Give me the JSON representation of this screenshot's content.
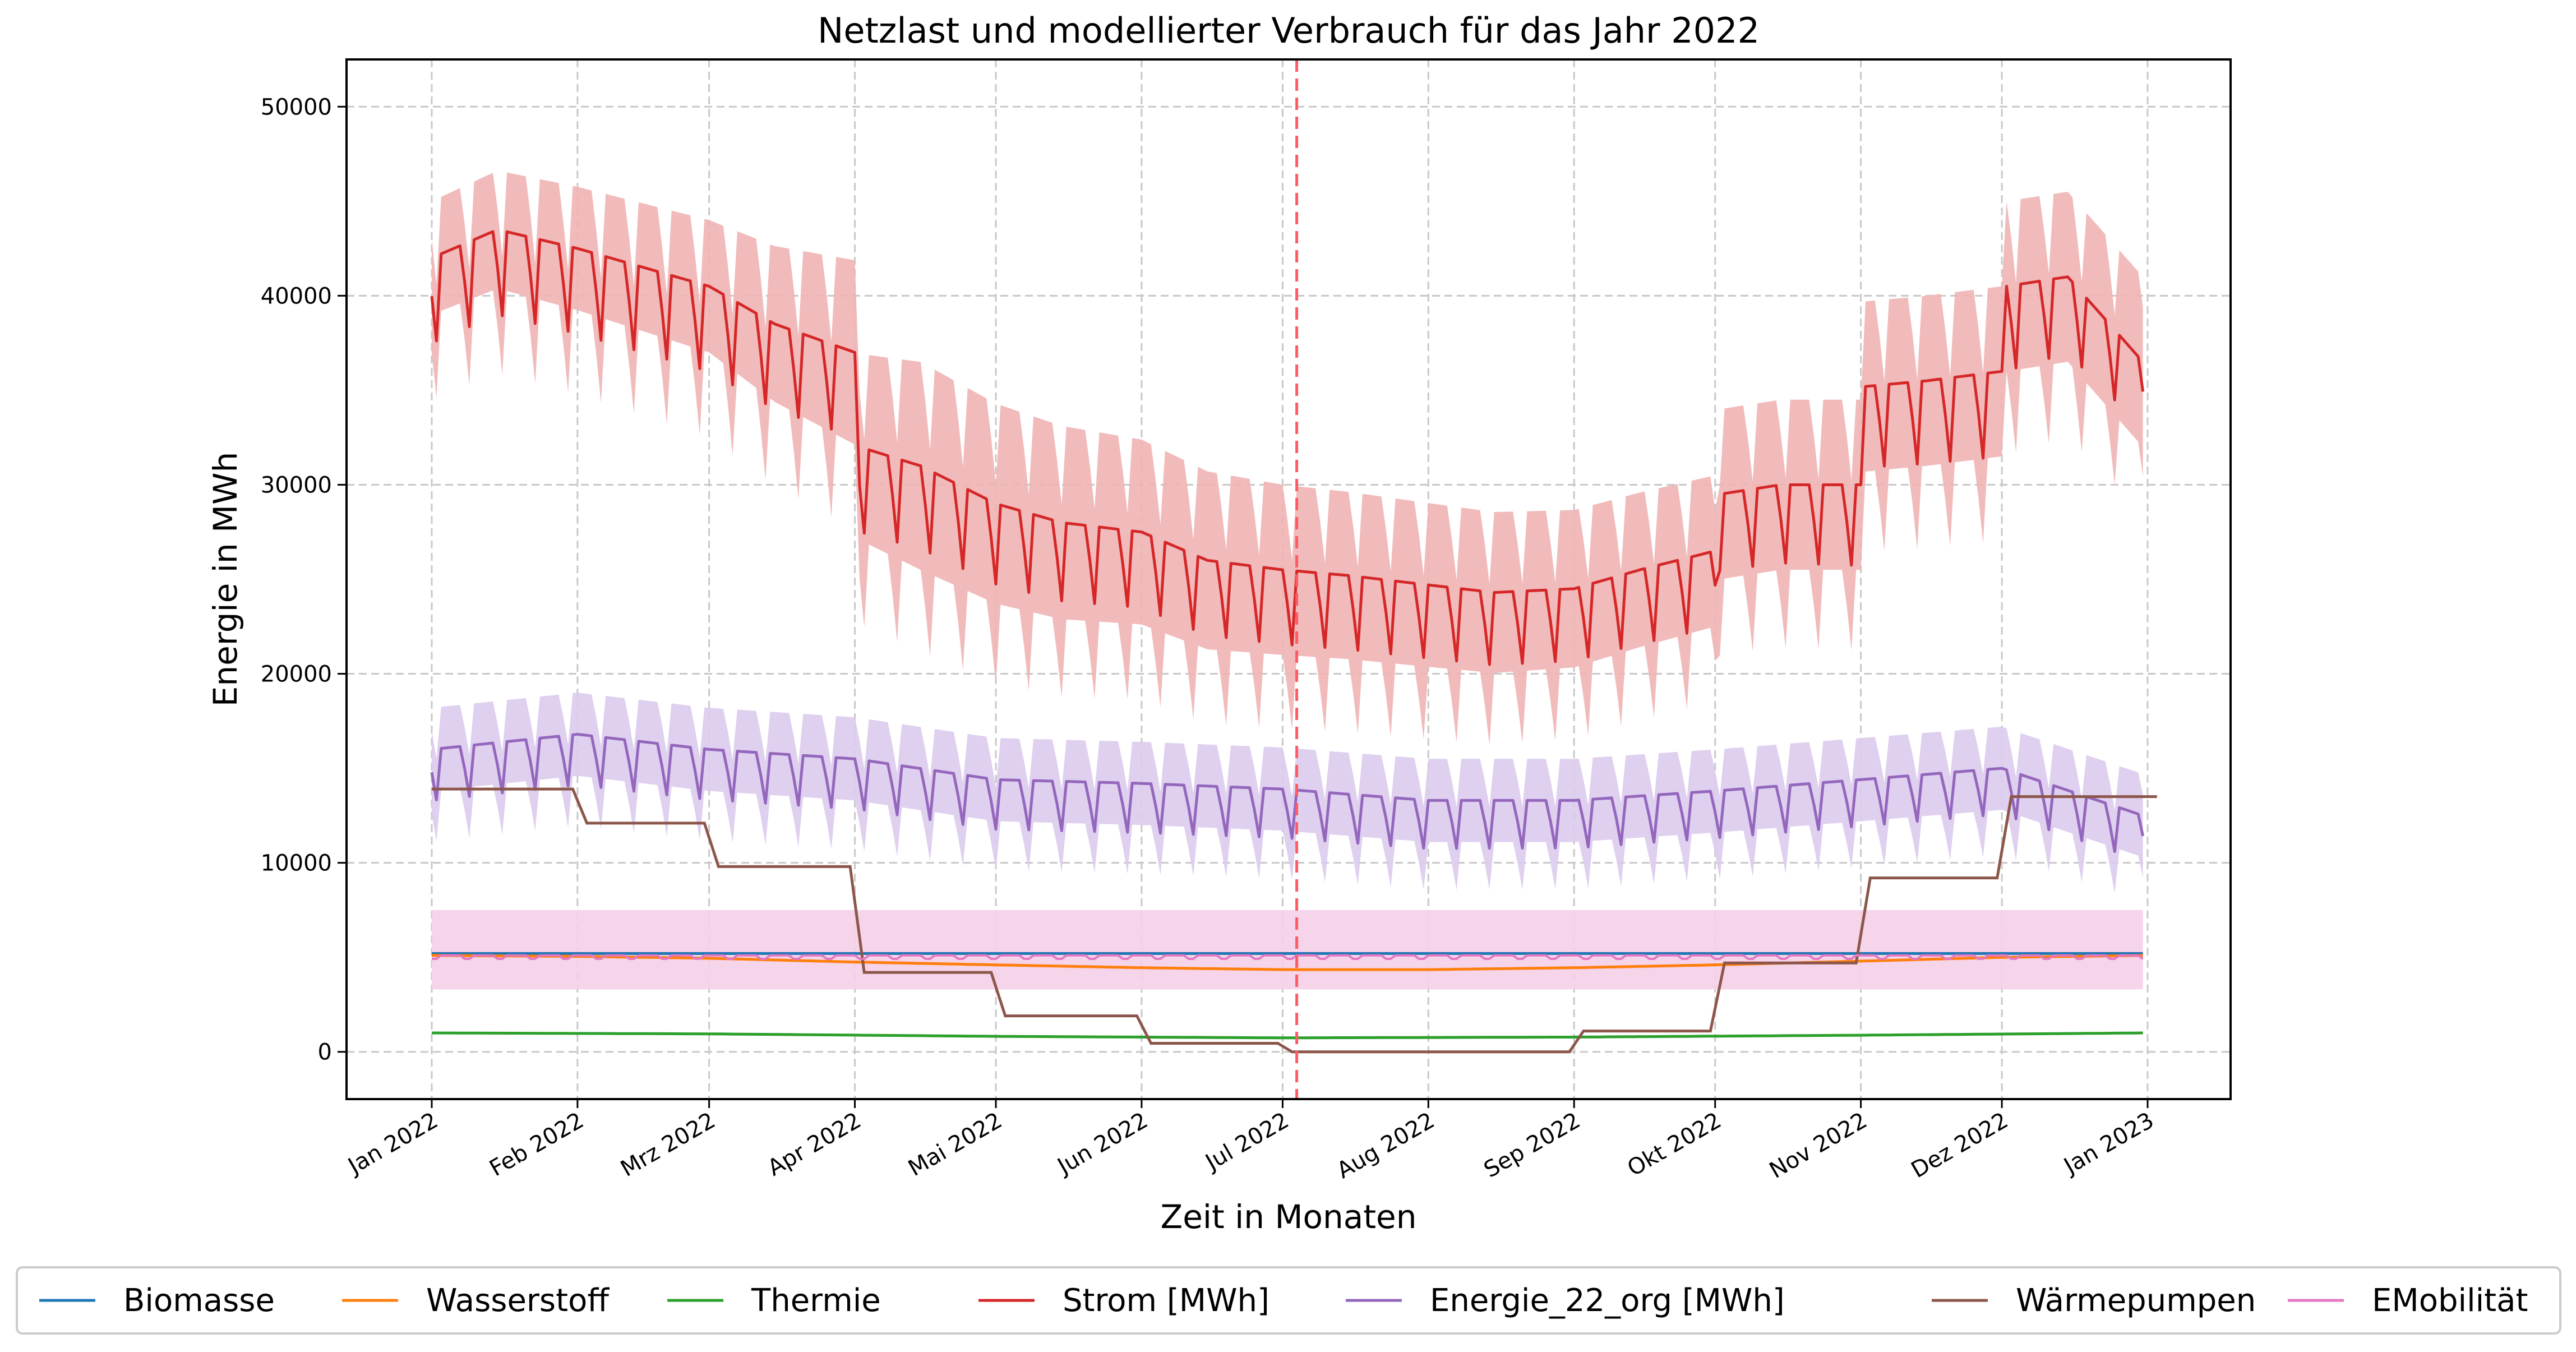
{
  "chart_data": {
    "type": "line",
    "title": "Netzlast und modellierter Verbrauch für das Jahr 2022",
    "xlabel": "Zeit in Monaten",
    "ylabel": "Energie in MWh",
    "x_range": [
      "2022-01-01",
      "2023-01-01"
    ],
    "ylim": [
      -2500,
      52500
    ],
    "grid": true,
    "legend_position": "bottom",
    "x_ticks": [
      "Jan 2022",
      "Feb 2022",
      "Mrz 2022",
      "Apr 2022",
      "Mai 2022",
      "Jun 2022",
      "Jul 2022",
      "Aug 2022",
      "Sep 2022",
      "Okt 2022",
      "Nov 2022",
      "Dez 2022",
      "Jan 2023"
    ],
    "y_ticks": [
      0,
      10000,
      20000,
      30000,
      40000,
      50000
    ],
    "vertical_marker": {
      "date": "2022-07-04",
      "color": "#ff5a64",
      "style": "dashed"
    },
    "series": [
      {
        "name": "Biomasse",
        "color": "#1f77b4",
        "type": "smooth",
        "points": [
          [
            "2022-01-01",
            5200
          ],
          [
            "2022-12-31",
            5200
          ]
        ]
      },
      {
        "name": "Wasserstoff",
        "color": "#ff7f0e",
        "type": "smooth",
        "points": [
          [
            "2022-01-01",
            5100
          ],
          [
            "2022-02-01",
            5050
          ],
          [
            "2022-03-01",
            4950
          ],
          [
            "2022-04-01",
            4750
          ],
          [
            "2022-05-01",
            4600
          ],
          [
            "2022-06-01",
            4450
          ],
          [
            "2022-07-01",
            4350
          ],
          [
            "2022-08-01",
            4350
          ],
          [
            "2022-09-01",
            4450
          ],
          [
            "2022-10-01",
            4600
          ],
          [
            "2022-11-01",
            4800
          ],
          [
            "2022-12-01",
            5000
          ],
          [
            "2022-12-31",
            5100
          ]
        ]
      },
      {
        "name": "Thermie",
        "color": "#2ca02c",
        "type": "smooth",
        "points": [
          [
            "2022-01-01",
            1000
          ],
          [
            "2022-03-01",
            950
          ],
          [
            "2022-05-01",
            820
          ],
          [
            "2022-07-01",
            740
          ],
          [
            "2022-09-01",
            780
          ],
          [
            "2022-11-01",
            880
          ],
          [
            "2022-12-31",
            1000
          ]
        ]
      },
      {
        "name": "Strom [MWh]",
        "color": "#d62728",
        "type": "weekly",
        "band_color": "#f0b4b4",
        "weekday_base": [
          [
            "2022-01-01",
            42000
          ],
          [
            "2022-01-15",
            43500
          ],
          [
            "2022-02-01",
            42500
          ],
          [
            "2022-02-15",
            41500
          ],
          [
            "2022-03-01",
            40500
          ],
          [
            "2022-03-15",
            38500
          ],
          [
            "2022-04-01",
            37000
          ],
          [
            "2022-04-02",
            32000
          ],
          [
            "2022-04-15",
            31000
          ],
          [
            "2022-05-01",
            29000
          ],
          [
            "2022-05-15",
            28000
          ],
          [
            "2022-06-01",
            27500
          ],
          [
            "2022-06-15",
            26000
          ],
          [
            "2022-07-01",
            25500
          ],
          [
            "2022-07-15",
            25200
          ],
          [
            "2022-08-01",
            24700
          ],
          [
            "2022-08-15",
            24300
          ],
          [
            "2022-09-01",
            24500
          ],
          [
            "2022-09-15",
            25500
          ],
          [
            "2022-10-01",
            26500
          ],
          [
            "2022-10-02",
            29500
          ],
          [
            "2022-10-15",
            30000
          ],
          [
            "2022-11-01",
            30000
          ],
          [
            "2022-11-02",
            35200
          ],
          [
            "2022-11-15",
            35500
          ],
          [
            "2022-12-01",
            36000
          ],
          [
            "2022-12-02",
            40500
          ],
          [
            "2022-12-15",
            41000
          ],
          [
            "2022-12-31",
            36500
          ]
        ],
        "weekend_dip": [
          [
            "2022-01-01",
            4500
          ],
          [
            "2022-04-01",
            4500
          ],
          [
            "2022-06-01",
            4000
          ],
          [
            "2022-09-01",
            3800
          ],
          [
            "2022-12-01",
            4500
          ],
          [
            "2022-12-31",
            3500
          ]
        ],
        "band_halfwidth": [
          [
            "2022-01-01",
            3000
          ],
          [
            "2022-03-01",
            3500
          ],
          [
            "2022-04-15",
            5500
          ],
          [
            "2022-07-01",
            4500
          ],
          [
            "2022-10-01",
            4000
          ],
          [
            "2022-10-02",
            4500
          ],
          [
            "2022-12-31",
            4500
          ]
        ]
      },
      {
        "name": "Energie_22_org [MWh]",
        "color": "#9467bd",
        "type": "weekly",
        "band_color": "#dccbed",
        "weekday_base": [
          [
            "2022-01-01",
            16000
          ],
          [
            "2022-02-01",
            16800
          ],
          [
            "2022-03-01",
            16000
          ],
          [
            "2022-04-01",
            15500
          ],
          [
            "2022-05-01",
            14400
          ],
          [
            "2022-06-01",
            14200
          ],
          [
            "2022-07-01",
            13900
          ],
          [
            "2022-08-01",
            13300
          ],
          [
            "2022-09-01",
            13300
          ],
          [
            "2022-10-01",
            13800
          ],
          [
            "2022-11-01",
            14400
          ],
          [
            "2022-12-01",
            15000
          ],
          [
            "2022-12-31",
            12500
          ]
        ],
        "weekend_dip": [
          [
            "2022-01-01",
            2700
          ],
          [
            "2022-06-01",
            2600
          ],
          [
            "2022-12-31",
            2400
          ]
        ],
        "band_halfwidth": [
          [
            "2022-01-01",
            2200
          ],
          [
            "2022-12-31",
            2200
          ]
        ]
      },
      {
        "name": "Wärmepumpen",
        "color": "#8c564b",
        "type": "step",
        "points": [
          [
            "2022-01-01",
            13900
          ],
          [
            "2022-01-31",
            12100
          ],
          [
            "2022-02-28",
            9800
          ],
          [
            "2022-03-31",
            4200
          ],
          [
            "2022-04-30",
            1900
          ],
          [
            "2022-05-31",
            450
          ],
          [
            "2022-06-30",
            0
          ],
          [
            "2022-08-31",
            1100
          ],
          [
            "2022-09-30",
            4700
          ],
          [
            "2022-10-31",
            9200
          ],
          [
            "2022-11-30",
            13500
          ],
          [
            "2022-12-31",
            13500
          ]
        ]
      },
      {
        "name": "EMobilität",
        "color": "#e377c2",
        "type": "flatband",
        "center": 5100,
        "band": [
          3300,
          7500
        ],
        "band_color": "#f5cfe8"
      }
    ]
  }
}
